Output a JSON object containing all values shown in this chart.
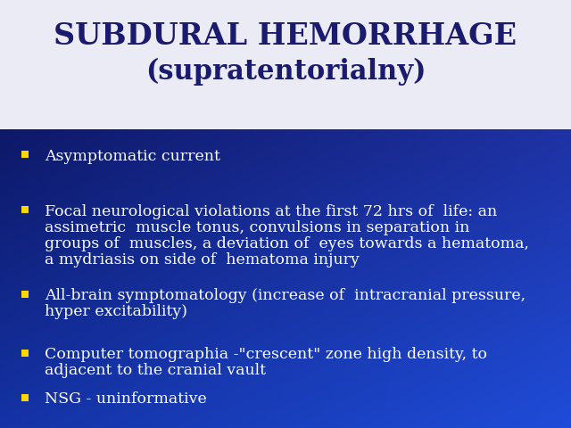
{
  "title_line1": "SUBDURAL HEMORRHAGE",
  "title_line2": "(supratentorialny)",
  "title_color": "#1a1a6e",
  "title_fontsize": 24,
  "title_fontsize2": 22,
  "bullet_color": "#FFD700",
  "bullet_text_color": "#FFFFFF",
  "bullet_fontsize": 12.5,
  "bg_colors": [
    "#0a1060",
    "#0a1878",
    "#0d22a0",
    "#1535c8",
    "#1848c0",
    "#1240aa",
    "#0d1e88",
    "#080e50"
  ],
  "title_bg_color": "#F0F0F8",
  "bullets": [
    [
      "Asymptomatic current"
    ],
    [
      "Focal neurological violations at the first 72 hrs of  life: an",
      "assimetric  muscle tonus, convulsions in separation in",
      "groups of  muscles, a deviation of  eyes towards a hematoma,",
      "a mydriasis on side of  hematoma injury"
    ],
    [
      "All-brain symptomatology (increase of  intracranial pressure,",
      "hyper excitability)"
    ],
    [
      "Computer tomographia -\"crescent\" zone high density, to",
      "adjacent to the cranial vault"
    ],
    [
      "NSG - uninformative"
    ]
  ]
}
